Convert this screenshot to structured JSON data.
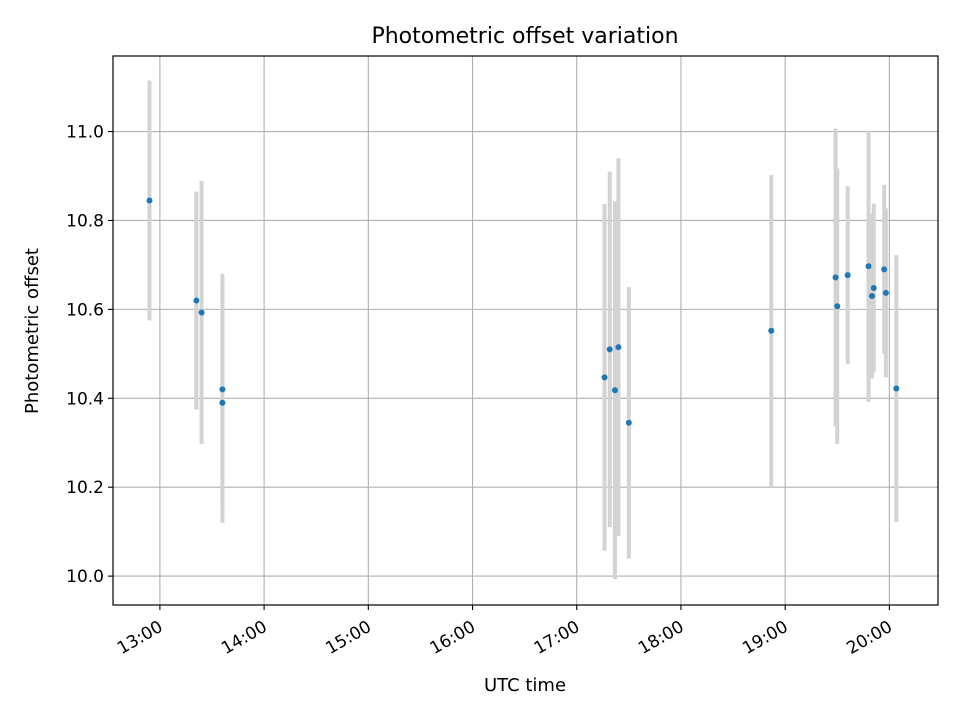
{
  "chart_data": {
    "type": "scatter",
    "title": "Photometric offset variation",
    "xlabel": "UTC time",
    "ylabel": "Photometric offset",
    "x_ticks": [
      "13:00",
      "14:00",
      "15:00",
      "16:00",
      "17:00",
      "18:00",
      "19:00",
      "20:00"
    ],
    "y_ticks": [
      "10.0",
      "10.2",
      "10.4",
      "10.6",
      "10.8",
      "11.0"
    ],
    "xlim": [
      "12:33",
      "20:28"
    ],
    "ylim": [
      9.935,
      11.17
    ],
    "grid": true,
    "legend": "none",
    "colors": {
      "point": "#1f77b4",
      "errorbar": "#d3d3d3",
      "grid": "#b0b0b0"
    },
    "points": [
      {
        "x": "12:54",
        "y": 10.845,
        "err_low": 10.575,
        "err_high": 11.115
      },
      {
        "x": "13:21",
        "y": 10.62,
        "err_low": 10.375,
        "err_high": 10.865
      },
      {
        "x": "13:24",
        "y": 10.593,
        "err_low": 10.297,
        "err_high": 10.889
      },
      {
        "x": "13:36",
        "y": 10.42,
        "err_low": 10.16,
        "err_high": 10.68
      },
      {
        "x": "13:36",
        "y": 10.39,
        "err_low": 10.12,
        "err_high": 10.66
      },
      {
        "x": "17:16",
        "y": 10.447,
        "err_low": 10.057,
        "err_high": 10.837
      },
      {
        "x": "17:19",
        "y": 10.51,
        "err_low": 10.11,
        "err_high": 10.91
      },
      {
        "x": "17:22",
        "y": 10.418,
        "err_low": 9.993,
        "err_high": 10.843
      },
      {
        "x": "17:24",
        "y": 10.515,
        "err_low": 10.09,
        "err_high": 10.94
      },
      {
        "x": "17:30",
        "y": 10.345,
        "err_low": 10.04,
        "err_high": 10.65
      },
      {
        "x": "18:52",
        "y": 10.552,
        "err_low": 10.202,
        "err_high": 10.902
      },
      {
        "x": "19:29",
        "y": 10.672,
        "err_low": 10.337,
        "err_high": 11.007
      },
      {
        "x": "19:30",
        "y": 10.607,
        "err_low": 10.297,
        "err_high": 10.917
      },
      {
        "x": "19:36",
        "y": 10.677,
        "err_low": 10.477,
        "err_high": 10.877
      },
      {
        "x": "19:48",
        "y": 10.697,
        "err_low": 10.392,
        "err_high": 11.002
      },
      {
        "x": "19:50",
        "y": 10.63,
        "err_low": 10.445,
        "err_high": 10.815
      },
      {
        "x": "19:51",
        "y": 10.648,
        "err_low": 10.458,
        "err_high": 10.838
      },
      {
        "x": "19:57",
        "y": 10.69,
        "err_low": 10.5,
        "err_high": 10.88
      },
      {
        "x": "19:58",
        "y": 10.637,
        "err_low": 10.447,
        "err_high": 10.827
      },
      {
        "x": "20:04",
        "y": 10.422,
        "err_low": 10.122,
        "err_high": 10.722
      }
    ]
  }
}
